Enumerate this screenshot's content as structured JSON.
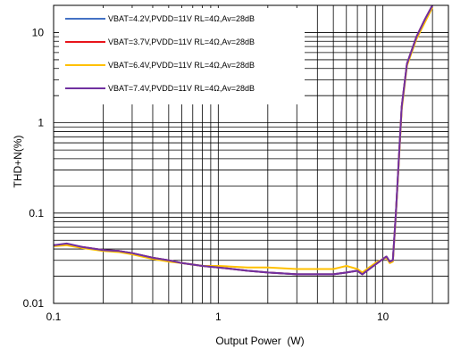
{
  "chart_data": {
    "type": "line",
    "xlabel": "Output Power  (W)",
    "ylabel": "THD+N(%)",
    "x_scale": "log",
    "y_scale": "log",
    "xlim": [
      0.1,
      25
    ],
    "ylim": [
      0.01,
      20
    ],
    "x_ticks": [
      {
        "value": 0.1,
        "label": "0.1"
      },
      {
        "value": 1,
        "label": "1"
      },
      {
        "value": 10,
        "label": "10"
      }
    ],
    "y_ticks": [
      {
        "value": 0.01,
        "label": "0.01"
      },
      {
        "value": 0.1,
        "label": "0.1"
      },
      {
        "value": 1,
        "label": "1"
      },
      {
        "value": 10,
        "label": "10"
      }
    ],
    "grid": true,
    "legend_position": "top-left",
    "series": [
      {
        "name": "VBAT=4.2V,PVDD=11V RL=4Ω,Av=28dB",
        "color": "#4472c4",
        "x": [
          0.1,
          0.12,
          0.15,
          0.2,
          0.25,
          0.3,
          0.4,
          0.5,
          0.6,
          0.8,
          1,
          1.5,
          2,
          3,
          4,
          5,
          6,
          7,
          7.5,
          8,
          9,
          10,
          10.5,
          11,
          11.5,
          12,
          13,
          14,
          16,
          18,
          20
        ],
        "y": [
          0.044,
          0.045,
          0.042,
          0.039,
          0.038,
          0.036,
          0.032,
          0.03,
          0.028,
          0.026,
          0.025,
          0.023,
          0.022,
          0.021,
          0.021,
          0.021,
          0.022,
          0.023,
          0.021,
          0.023,
          0.027,
          0.031,
          0.033,
          0.029,
          0.03,
          0.1,
          1.5,
          4.5,
          9,
          14,
          20
        ]
      },
      {
        "name": "VBAT=3.7V,PVDD=11V RL=4Ω,Av=28dB",
        "color": "#e8141b",
        "x": [
          0.1,
          0.12,
          0.15,
          0.2,
          0.25,
          0.3,
          0.4,
          0.5,
          0.6,
          0.8,
          1,
          1.5,
          2,
          3,
          4,
          5,
          6,
          7,
          7.5,
          8,
          9,
          10,
          10.5,
          11,
          11.5,
          12,
          13,
          14,
          16,
          18,
          20
        ],
        "y": [
          0.044,
          0.045,
          0.042,
          0.039,
          0.038,
          0.036,
          0.032,
          0.03,
          0.028,
          0.026,
          0.025,
          0.023,
          0.022,
          0.021,
          0.021,
          0.021,
          0.022,
          0.023,
          0.021,
          0.023,
          0.027,
          0.031,
          0.033,
          0.029,
          0.03,
          0.1,
          1.5,
          4.5,
          9,
          14,
          20
        ]
      },
      {
        "name": "VBAT=6.4V,PVDD=11V RL=4Ω,Av=28dB",
        "color": "#ffc000",
        "x": [
          0.1,
          0.12,
          0.15,
          0.2,
          0.25,
          0.3,
          0.4,
          0.5,
          0.6,
          0.8,
          1,
          1.5,
          2,
          3,
          4,
          5,
          6,
          7,
          7.5,
          8,
          9,
          10,
          10.5,
          11,
          11.5,
          12,
          13,
          14,
          16,
          18,
          20
        ],
        "y": [
          0.043,
          0.044,
          0.041,
          0.038,
          0.037,
          0.035,
          0.031,
          0.029,
          0.028,
          0.026,
          0.026,
          0.025,
          0.025,
          0.024,
          0.024,
          0.024,
          0.026,
          0.024,
          0.022,
          0.024,
          0.028,
          0.031,
          0.032,
          0.028,
          0.029,
          0.095,
          1.4,
          4.3,
          8.5,
          13,
          19
        ]
      },
      {
        "name": "VBAT=7.4V,PVDD=11V RL=4Ω,Av=28dB",
        "color": "#7030a0",
        "x": [
          0.1,
          0.12,
          0.15,
          0.2,
          0.25,
          0.3,
          0.4,
          0.5,
          0.6,
          0.8,
          1,
          1.5,
          2,
          3,
          4,
          5,
          6,
          7,
          7.5,
          8,
          9,
          10,
          10.5,
          11,
          11.5,
          12,
          13,
          14,
          16,
          18,
          20
        ],
        "y": [
          0.044,
          0.046,
          0.042,
          0.039,
          0.038,
          0.036,
          0.032,
          0.03,
          0.028,
          0.026,
          0.025,
          0.023,
          0.022,
          0.021,
          0.021,
          0.021,
          0.022,
          0.023,
          0.021,
          0.023,
          0.027,
          0.031,
          0.033,
          0.029,
          0.03,
          0.1,
          1.5,
          4.5,
          9,
          14,
          20
        ]
      }
    ]
  }
}
